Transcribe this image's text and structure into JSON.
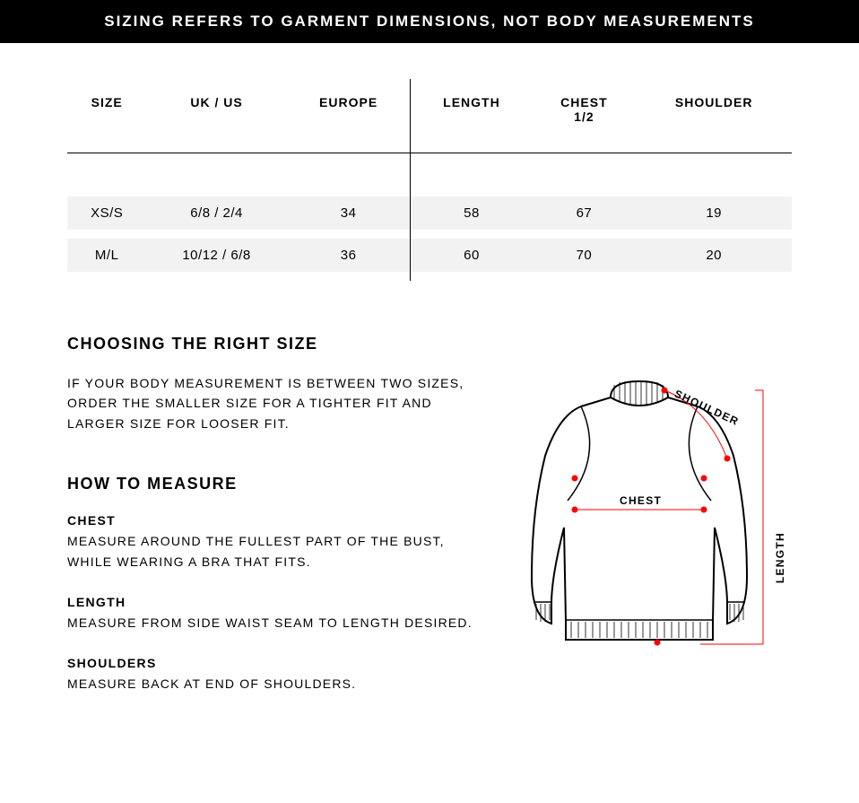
{
  "banner": "SIZING REFERS TO GARMENT DIMENSIONS, NOT BODY MEASUREMENTS",
  "table": {
    "columns": [
      "SIZE",
      "UK / US",
      "EUROPE",
      "LENGTH",
      "CHEST 1/2",
      "SHOULDER"
    ],
    "rows": [
      [
        "XS/S",
        "6/8 / 2/4",
        "34",
        "58",
        "67",
        "19"
      ],
      [
        "M/L",
        "10/12 / 6/8",
        "36",
        "60",
        "70",
        "20"
      ]
    ],
    "header_bg": "#ffffff",
    "row_bg": "#f2f2f2",
    "row_gap_bg": "#ffffff",
    "border_color": "#000000",
    "divider_after_col": 3,
    "header_fontsize": 14,
    "cell_fontsize": 15
  },
  "choosing": {
    "heading": "CHOOSING THE RIGHT SIZE",
    "text": "IF YOUR BODY MEASUREMENT IS BETWEEN TWO SIZES, ORDER THE SMALLER SIZE FOR A TIGHTER FIT AND LARGER SIZE FOR LOOSER FIT."
  },
  "how_to_measure": {
    "heading": "HOW TO MEASURE",
    "items": [
      {
        "label": "CHEST",
        "desc": "MEASURE AROUND THE FULLEST PART OF THE BUST, WHILE WEARING A BRA THAT FITS."
      },
      {
        "label": "LENGTH",
        "desc": "MEASURE FROM SIDE WAIST SEAM TO LENGTH DESIRED."
      },
      {
        "label": "SHOULDERS",
        "desc": "MEASURE BACK AT END OF SHOULDERS."
      }
    ]
  },
  "diagram": {
    "type": "infographic",
    "outline_color": "#000000",
    "outline_width": 2,
    "guide_color": "#ff0000",
    "guide_width": 1,
    "dot_radius": 3.5,
    "dot_color": "#ff0000",
    "labels": {
      "chest": "CHEST",
      "length": "LENGTH",
      "shoulder": "SHOULDER"
    },
    "label_fontsize": 12
  },
  "colors": {
    "background": "#ffffff",
    "text": "#000000",
    "banner_bg": "#000000",
    "banner_text": "#ffffff"
  }
}
